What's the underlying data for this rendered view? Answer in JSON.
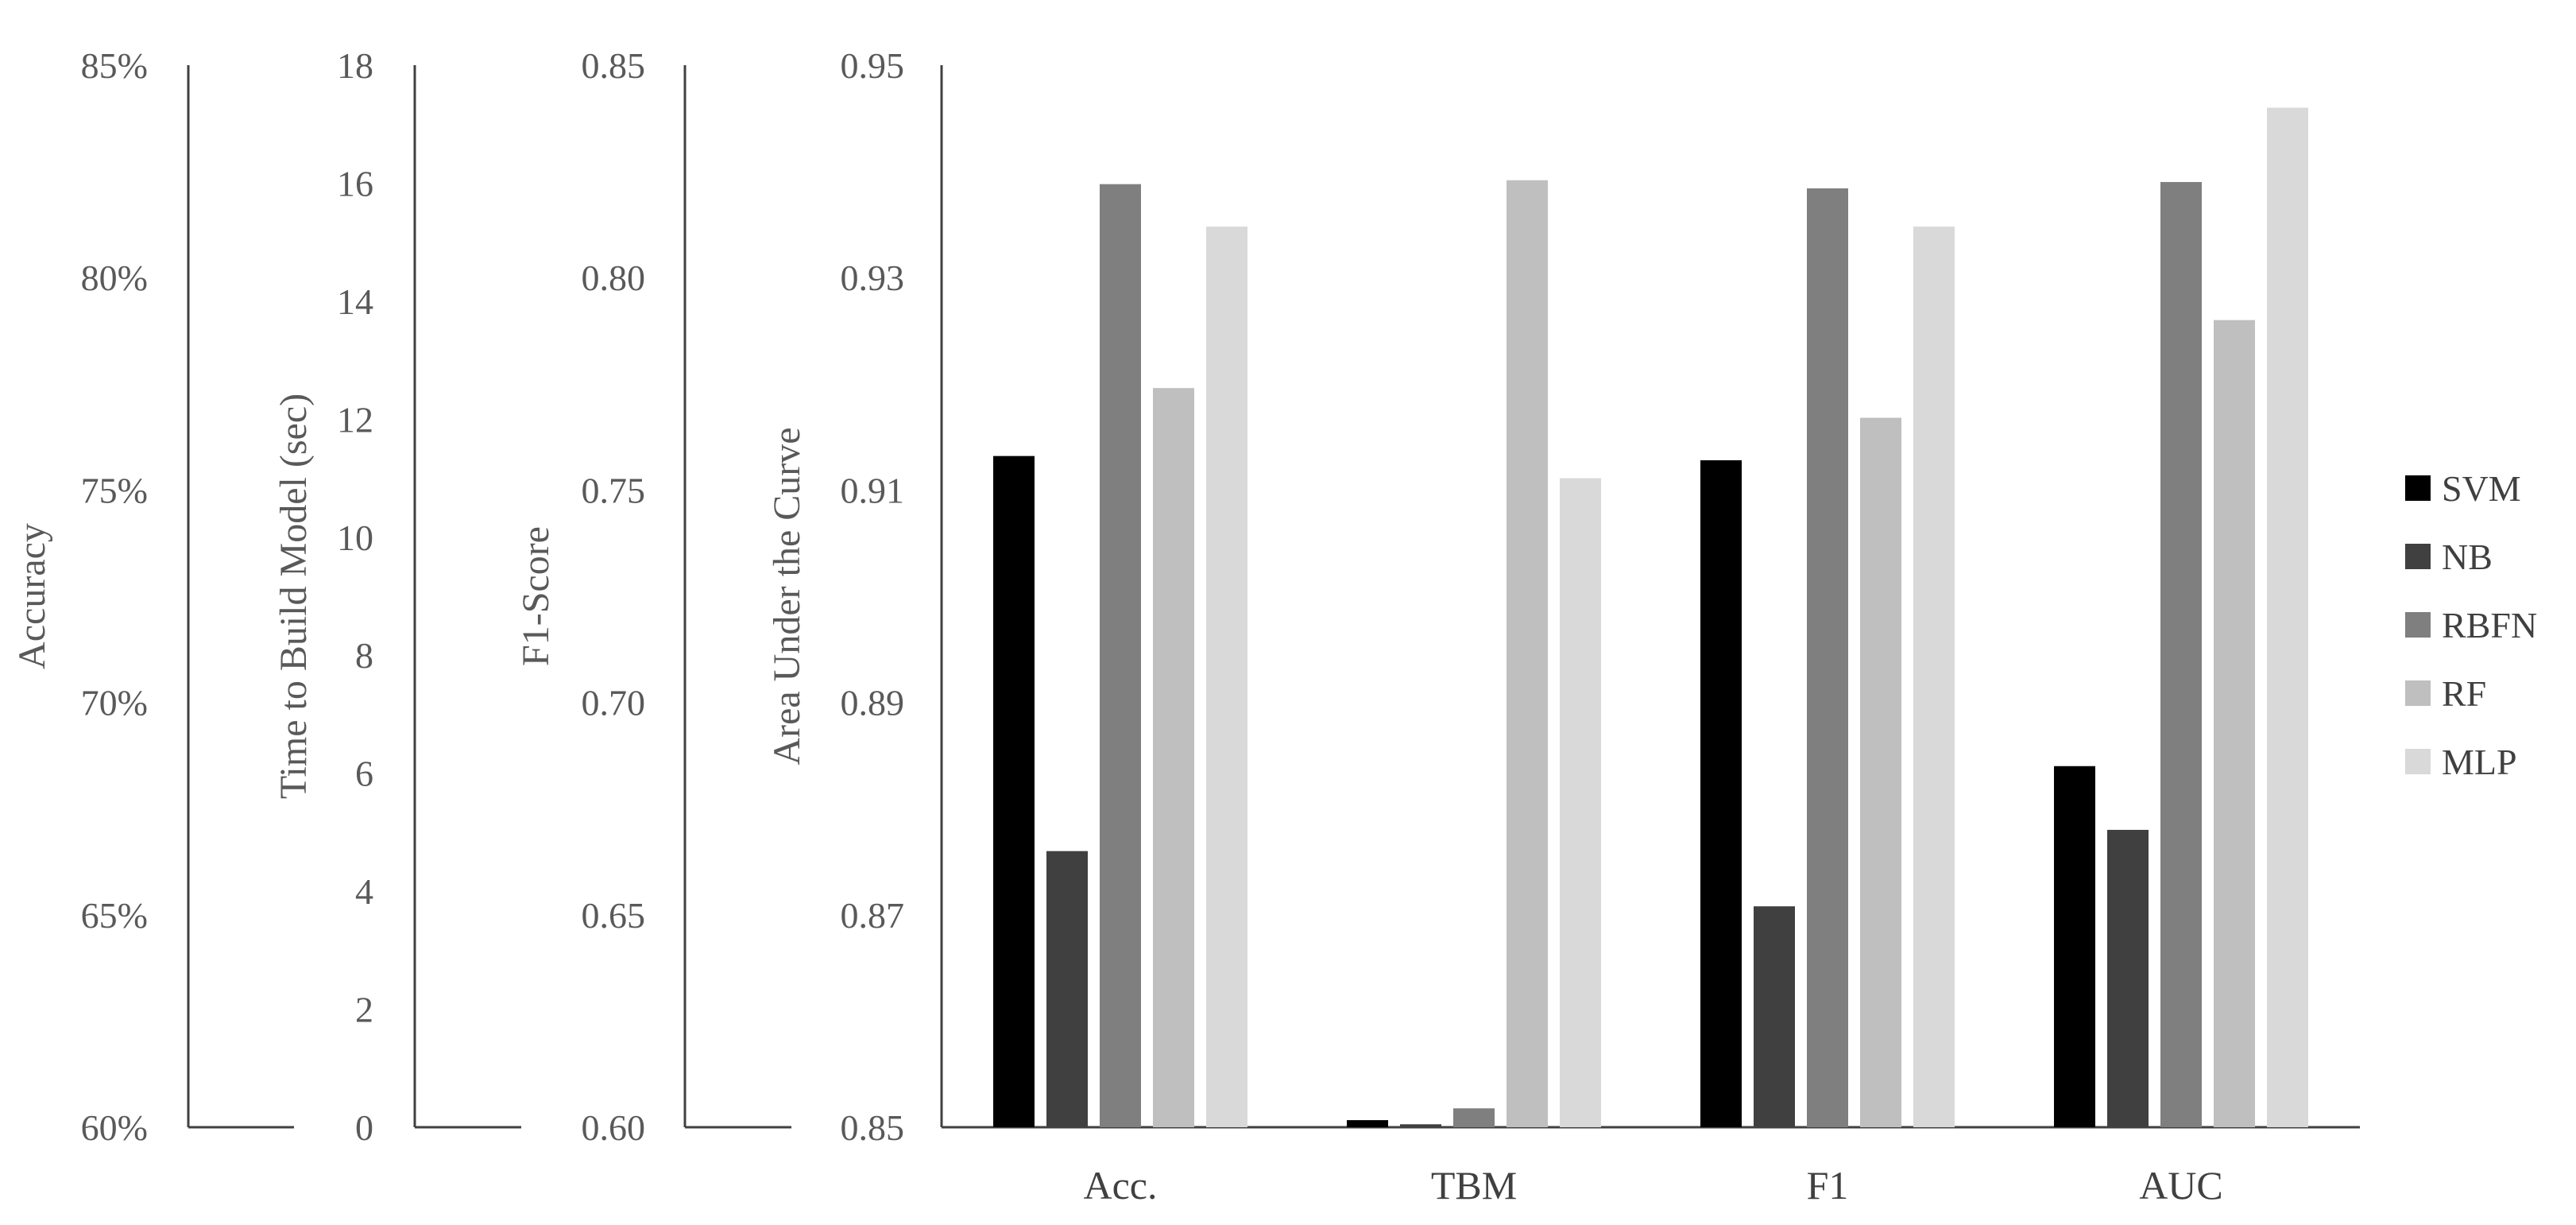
{
  "chart_data": {
    "type": "bar",
    "categories": [
      "Acc.",
      "TBM",
      "F1",
      "AUC"
    ],
    "series": [
      {
        "name": "SVM",
        "color": "#000000"
      },
      {
        "name": "NB",
        "color": "#404040"
      },
      {
        "name": "RBFN",
        "color": "#7f7f7f"
      },
      {
        "name": "RF",
        "color": "#bfbfbf"
      },
      {
        "name": "MLP",
        "color": "#d9d9d9"
      }
    ],
    "values": {
      "Acc.": {
        "SVM": 75.8,
        "NB": 66.5,
        "RBFN": 82.2,
        "RF": 77.4,
        "MLP": 81.2
      },
      "TBM": {
        "SVM": 0.12,
        "NB": 0.05,
        "RBFN": 0.32,
        "RF": 16.05,
        "MLP": 11.0
      },
      "F1": {
        "SVM": 0.757,
        "NB": 0.652,
        "RBFN": 0.821,
        "RF": 0.767,
        "MLP": 0.812
      },
      "AUC": {
        "SVM": 0.884,
        "NB": 0.878,
        "RBFN": 0.939,
        "RF": 0.926,
        "MLP": 0.946
      }
    },
    "axes": [
      {
        "key": "Acc.",
        "label": "Accuracy",
        "ylim": [
          60,
          85
        ],
        "ticks": [
          "60%",
          "65%",
          "70%",
          "75%",
          "80%",
          "85%"
        ]
      },
      {
        "key": "TBM",
        "label": "Time to Build Model (sec)",
        "ylim": [
          0,
          18
        ],
        "ticks": [
          "0",
          "2",
          "4",
          "6",
          "8",
          "10",
          "12",
          "14",
          "16",
          "18"
        ]
      },
      {
        "key": "F1",
        "label": "F1-Score",
        "ylim": [
          0.6,
          0.85
        ],
        "ticks": [
          "0.60",
          "0.65",
          "0.70",
          "0.75",
          "0.80",
          "0.85"
        ]
      },
      {
        "key": "AUC",
        "label": "Area Under the Curve",
        "ylim": [
          0.85,
          0.95
        ],
        "ticks": [
          "0.85",
          "0.87",
          "0.89",
          "0.91",
          "0.93",
          "0.95"
        ]
      }
    ],
    "legend": "right"
  }
}
